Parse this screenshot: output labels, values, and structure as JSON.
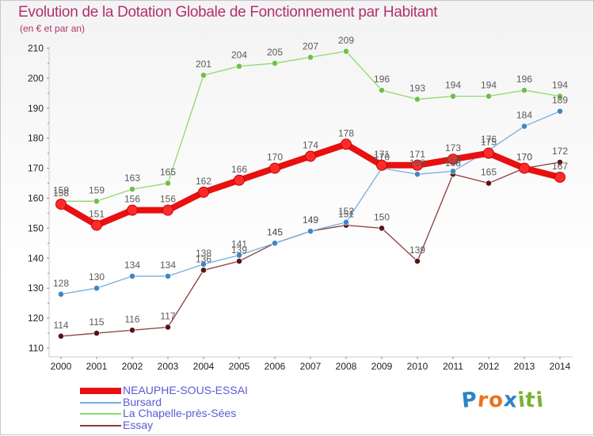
{
  "title": "Evolution de la Dotation Globale de Fonctionnement par Habitant",
  "subtitle": "(en € et par an)",
  "brand": {
    "letters": [
      "P",
      "r",
      "o",
      "x",
      "i",
      "t",
      "i"
    ],
    "colors": [
      "#2d84c5",
      "#e8741d",
      "#e8741d",
      "#2d84c5",
      "#7ab232",
      "#7ab232",
      "#7ab232"
    ]
  },
  "chart_data": {
    "type": "line",
    "title": "Evolution de la Dotation Globale de Fonctionnement par Habitant",
    "subtitle": "(en € et par an)",
    "xlabel": "",
    "ylabel": "",
    "ylim": [
      110,
      210
    ],
    "yticks": [
      110,
      120,
      130,
      140,
      150,
      160,
      170,
      180,
      190,
      200,
      210
    ],
    "categories": [
      "2000",
      "2001",
      "2002",
      "2003",
      "2004",
      "2005",
      "2006",
      "2007",
      "2008",
      "2009",
      "2010",
      "2011",
      "2012",
      "2013",
      "2014"
    ],
    "series": [
      {
        "name": "NEAUPHE-SOUS-ESSAI",
        "color": "#e81010",
        "marker_color": "#ff2b2b",
        "thick": true,
        "values": [
          158,
          151,
          156,
          156,
          162,
          166,
          170,
          174,
          178,
          171,
          171,
          173,
          175,
          170,
          167
        ]
      },
      {
        "name": "Bursard",
        "color": "#73aee0",
        "marker_color": "#3e86c8",
        "thick": false,
        "values": [
          128,
          130,
          134,
          134,
          138,
          141,
          145,
          149,
          152,
          170,
          168,
          169,
          176,
          184,
          189
        ]
      },
      {
        "name": "La Chapelle-près-Sées",
        "color": "#8fd96a",
        "marker_color": "#6cc04a",
        "thick": false,
        "values": [
          159,
          159,
          163,
          165,
          201,
          204,
          205,
          207,
          209,
          196,
          193,
          194,
          194,
          196,
          194
        ]
      },
      {
        "name": "Essay",
        "color": "#8a3b3b",
        "marker_color": "#5a1414",
        "thick": false,
        "values": [
          114,
          115,
          116,
          117,
          136,
          139,
          145,
          149,
          151,
          150,
          139,
          168,
          165,
          170,
          172
        ]
      }
    ],
    "grid": false,
    "legend": "bottom-left"
  }
}
